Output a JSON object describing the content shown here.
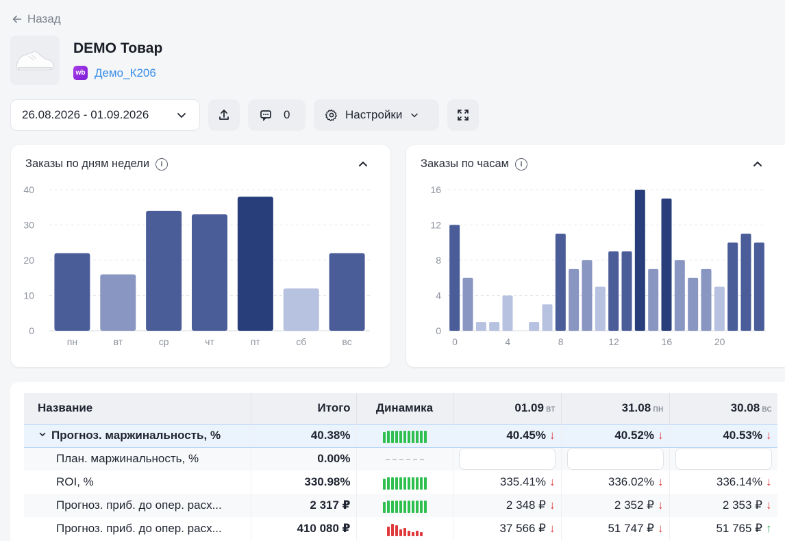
{
  "nav": {
    "back_label": "Назад"
  },
  "product": {
    "title": "DEMO Товар",
    "shop_badge": "wb",
    "shop_name": "Демо_К206"
  },
  "toolbar": {
    "date_range": "26.08.2026 - 01.09.2026",
    "comments_count": "0",
    "settings_label": "Настройки"
  },
  "colors": {
    "dark": "#283e7a",
    "mid": "#4a5d99",
    "light": "#8a96c2",
    "lighter": "#b7c1e0",
    "green": "#2fbf4f",
    "red": "#e0393b"
  },
  "weekday_chart": {
    "title": "Заказы по дням недели",
    "chart_data": {
      "type": "bar",
      "categories": [
        "пн",
        "вт",
        "ср",
        "чт",
        "пт",
        "сб",
        "вс"
      ],
      "values": [
        22,
        16,
        34,
        33,
        38,
        12,
        22
      ],
      "ylim": [
        0,
        40
      ],
      "yticks": [
        0,
        10,
        20,
        30,
        40
      ],
      "grid": true
    }
  },
  "hourly_chart": {
    "title": "Заказы по часам",
    "chart_data": {
      "type": "bar",
      "x": [
        0,
        1,
        2,
        3,
        4,
        5,
        6,
        7,
        8,
        9,
        10,
        11,
        12,
        13,
        14,
        15,
        16,
        17,
        18,
        19,
        20,
        21,
        22,
        23
      ],
      "values": [
        12,
        6,
        1,
        1,
        4,
        0,
        1,
        3,
        11,
        7,
        8,
        5,
        9,
        9,
        16,
        7,
        15,
        8,
        6,
        7,
        5,
        10,
        11,
        10
      ],
      "ylim": [
        0,
        16
      ],
      "yticks": [
        0,
        4,
        8,
        12,
        16
      ],
      "xticks": [
        0,
        4,
        8,
        12,
        16,
        20
      ],
      "grid": true
    }
  },
  "table": {
    "headers": {
      "name": "Название",
      "total": "Итого",
      "dynamics": "Динамика"
    },
    "days": [
      {
        "date": "01.09",
        "weekday": "вт"
      },
      {
        "date": "31.08",
        "weekday": "пн"
      },
      {
        "date": "30.08",
        "weekday": "вс"
      }
    ],
    "rows": [
      {
        "name": "Прогноз. маржинальность, %",
        "total": "40.38%",
        "values": [
          "40.45%",
          "40.52%",
          "40.53%"
        ],
        "trends": [
          "down",
          "down",
          "down"
        ],
        "spark": "green"
      },
      {
        "name": "План. маржинальность, %",
        "total": "0.00%",
        "values": [
          "",
          "",
          ""
        ],
        "trends": [
          "",
          "",
          ""
        ],
        "spark": "dash"
      },
      {
        "name": "ROI, %",
        "total": "330.98%",
        "values": [
          "335.41%",
          "336.02%",
          "336.14%"
        ],
        "trends": [
          "down",
          "down",
          "down"
        ],
        "spark": "green"
      },
      {
        "name": "Прогноз. приб. до опер. расх...",
        "total": "2 317 ₽",
        "values": [
          "2 348 ₽",
          "2 352 ₽",
          "2 353 ₽"
        ],
        "trends": [
          "down",
          "down",
          "down"
        ],
        "spark": "green"
      },
      {
        "name": "Прогноз. приб. до опер. расх...",
        "total": "410 080 ₽",
        "values": [
          "37 566 ₽",
          "51 747 ₽",
          "51 765 ₽"
        ],
        "trends": [
          "down",
          "down",
          "up"
        ],
        "spark": "red"
      }
    ]
  }
}
